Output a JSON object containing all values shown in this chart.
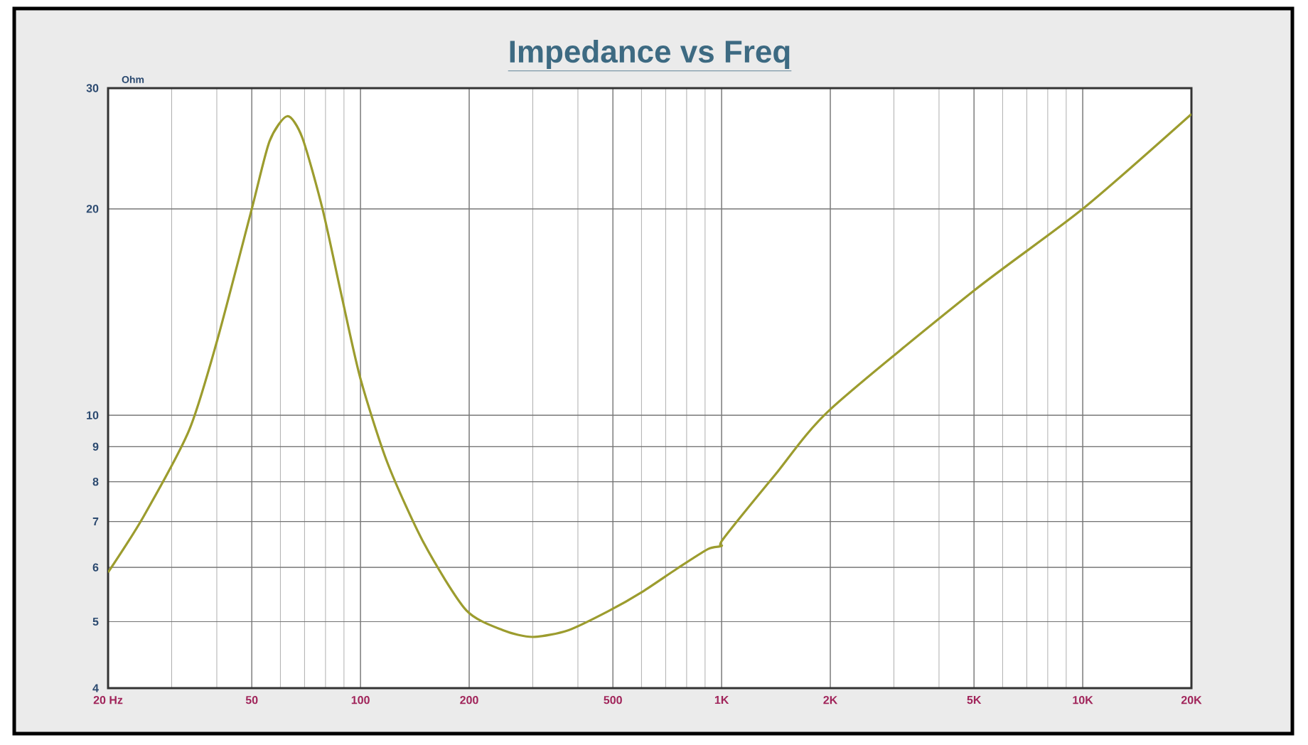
{
  "chart_data": {
    "type": "line",
    "title": "Impedance vs Freq",
    "ylabel": "Ohm",
    "log": "xy",
    "grid": true,
    "marker": "none",
    "line_style": "solid",
    "xlim": [
      20,
      20000
    ],
    "ylim": [
      4,
      30
    ],
    "xticks": [
      {
        "value": 20,
        "label": "20 Hz"
      },
      50,
      100,
      200,
      500,
      {
        "value": 1000,
        "label": "1K"
      },
      {
        "value": 2000,
        "label": "2K"
      },
      {
        "value": 5000,
        "label": "5K"
      },
      {
        "value": 10000,
        "label": "10K"
      },
      {
        "value": 20000,
        "label": "20K"
      }
    ],
    "yticks": [
      4,
      5,
      6,
      7,
      8,
      9,
      10,
      20,
      30
    ],
    "series": [
      {
        "color": "#9c9c2e",
        "x": [
          20,
          25,
          33.5,
          40,
          50,
          56,
          62.7,
          69,
          78.5,
          88.5,
          100,
          119,
          150,
          196,
          248,
          300,
          377,
          486,
          604,
          751,
          917,
          1000,
          1010,
          1410,
          2000,
          5000,
          10000,
          20000
        ],
        "values": [
          5.9,
          7.1,
          9.5,
          12.8,
          20,
          25.1,
          27.3,
          25.4,
          20,
          15,
          11.3,
          8.5,
          6.5,
          5.2,
          4.86,
          4.75,
          4.86,
          5.18,
          5.53,
          5.97,
          6.38,
          6.45,
          6.6,
          8.2,
          10.2,
          15.2,
          20,
          27.5
        ]
      }
    ]
  }
}
